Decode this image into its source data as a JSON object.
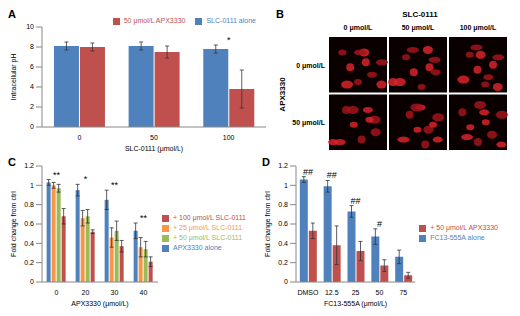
{
  "chart_data": [
    {
      "panel": "A",
      "type": "bar",
      "y_label": "Intracellular pH",
      "x_label": "SLC-0111 (μmol/L)",
      "categories": [
        "0",
        "50",
        "100"
      ],
      "series": [
        {
          "name": "SLC-0111 alone",
          "color": "#4f81bd",
          "values": [
            8.1,
            8.1,
            7.8
          ],
          "errors": [
            0.4,
            0.4,
            0.4
          ]
        },
        {
          "name": "50 μmol/L APX3330",
          "color": "#c0504d",
          "values": [
            8.0,
            7.5,
            3.8
          ],
          "errors": [
            0.4,
            0.6,
            1.9
          ]
        }
      ],
      "ylim": [
        0,
        10
      ],
      "yticks": [
        0,
        2,
        4,
        6,
        8,
        10
      ],
      "legend": "upper right",
      "annotations": [
        {
          "text": "*",
          "category": "100"
        }
      ]
    },
    {
      "panel": "C",
      "type": "bar",
      "y_label": "Fold change from ctrl",
      "x_label": "APX3330 (μmol/L)",
      "categories": [
        "0",
        "20",
        "30",
        "40"
      ],
      "series": [
        {
          "name": "APX3330 alone",
          "color": "#4f81bd",
          "values": [
            1.03,
            0.95,
            0.85,
            0.53
          ],
          "errors": [
            0.03,
            0.06,
            0.1,
            0.08
          ]
        },
        {
          "name": "+ 25 μmol/L SLC-0111",
          "color": "#f79646",
          "values": [
            1.0,
            0.66,
            0.46,
            0.36
          ],
          "errors": [
            0.03,
            0.08,
            0.1,
            0.1
          ]
        },
        {
          "name": "+ 50 μmol/L SLC-0111",
          "color": "#9bbb59",
          "values": [
            0.97,
            0.68,
            0.53,
            0.34
          ],
          "errors": [
            0.04,
            0.07,
            0.1,
            0.08
          ]
        },
        {
          "name": "+ 100 μmol/L SLC-0111",
          "color": "#c0504d",
          "values": [
            0.68,
            0.52,
            0.37,
            0.21
          ],
          "errors": [
            0.08,
            0.02,
            0.06,
            0.05
          ]
        }
      ],
      "ylim": [
        0,
        1.2
      ],
      "yticks": [
        0,
        0.2,
        0.4,
        0.6,
        0.8,
        1,
        1.2
      ],
      "legend": "right",
      "annotations": [
        {
          "text": "**",
          "category": "0"
        },
        {
          "text": "*",
          "category": "20"
        },
        {
          "text": "**",
          "category": "30"
        },
        {
          "text": "**",
          "category": "40"
        }
      ]
    },
    {
      "panel": "D",
      "type": "bar",
      "y_label": "Fold change from ctrl",
      "x_label": "FC13-555A (μmol/L)",
      "categories": [
        "DMSO",
        "12.5",
        "25",
        "50",
        "75"
      ],
      "series": [
        {
          "name": "FC13-555A alone",
          "color": "#4f81bd",
          "values": [
            1.06,
            0.99,
            0.73,
            0.47,
            0.26
          ],
          "errors": [
            0.03,
            0.06,
            0.06,
            0.08,
            0.07
          ]
        },
        {
          "name": "+ 50 μmol/L APX3330",
          "color": "#c0504d",
          "values": [
            0.53,
            0.38,
            0.32,
            0.17,
            0.07
          ],
          "errors": [
            0.08,
            0.2,
            0.1,
            0.06,
            0.03
          ]
        }
      ],
      "ylim": [
        0,
        1.2
      ],
      "yticks": [
        0,
        0.2,
        0.4,
        0.6,
        0.8,
        1,
        1.2
      ],
      "legend": "right",
      "annotations": [
        {
          "text": "##",
          "category": "DMSO"
        },
        {
          "text": "##",
          "category": "12.5"
        },
        {
          "text": "##",
          "category": "25"
        },
        {
          "text": "#",
          "category": "50"
        }
      ]
    }
  ],
  "image_panel": {
    "panel": "B",
    "title": "SLC-0111",
    "columns": [
      "0 μmol/L",
      "50 μmol/L",
      "100 μmol/L"
    ],
    "row_title": "APX3330",
    "rows": [
      "0 μmol/L",
      "50 μmol/L"
    ]
  }
}
